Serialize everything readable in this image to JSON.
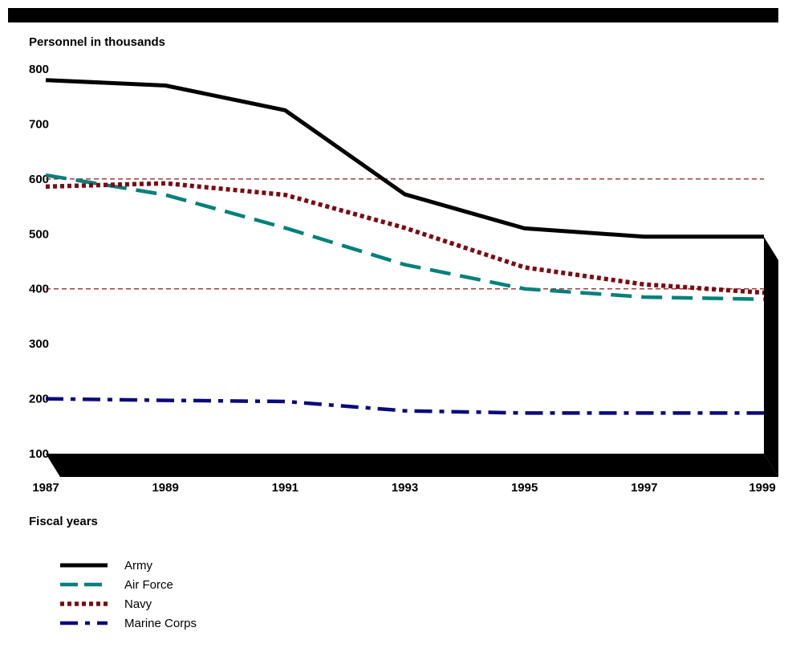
{
  "chart_data": {
    "type": "line",
    "title": "",
    "ylabel": "Personnel in thousands",
    "xlabel": "Fiscal years",
    "x": [
      1987,
      1989,
      1991,
      1993,
      1995,
      1997,
      1999
    ],
    "x_tick_labels": [
      "1987",
      "1989",
      "1991",
      "1993",
      "1995",
      "1997",
      "1999"
    ],
    "y_tick_values": [
      100,
      200,
      300,
      400,
      500,
      600,
      700,
      800
    ],
    "y_tick_labels": [
      "100",
      "200",
      "300",
      "400",
      "500",
      "600",
      "700",
      "800"
    ],
    "ylim": [
      100,
      800
    ],
    "xlim": [
      1987,
      1999
    ],
    "reference_lines": [
      400,
      600
    ],
    "legend_position": "bottom-left",
    "series": [
      {
        "name": "Army",
        "values": [
          780,
          770,
          725,
          572,
          510,
          495,
          495
        ],
        "color": "#000000",
        "style": "solid"
      },
      {
        "name": "Air Force",
        "values": [
          607,
          571,
          511,
          444,
          400,
          385,
          381
        ],
        "color": "#00807a",
        "style": "dashed"
      },
      {
        "name": "Navy",
        "values": [
          586,
          592,
          571,
          511,
          439,
          408,
          393
        ],
        "color": "#7a0a12",
        "style": "dotted"
      },
      {
        "name": "Marine Corps",
        "values": [
          200,
          197,
          195,
          178,
          174,
          174,
          174
        ],
        "color": "#0a0a7a",
        "style": "dashdot"
      }
    ]
  },
  "colors": {
    "bar": "#000000",
    "reference_line": "#8b1a1a"
  }
}
